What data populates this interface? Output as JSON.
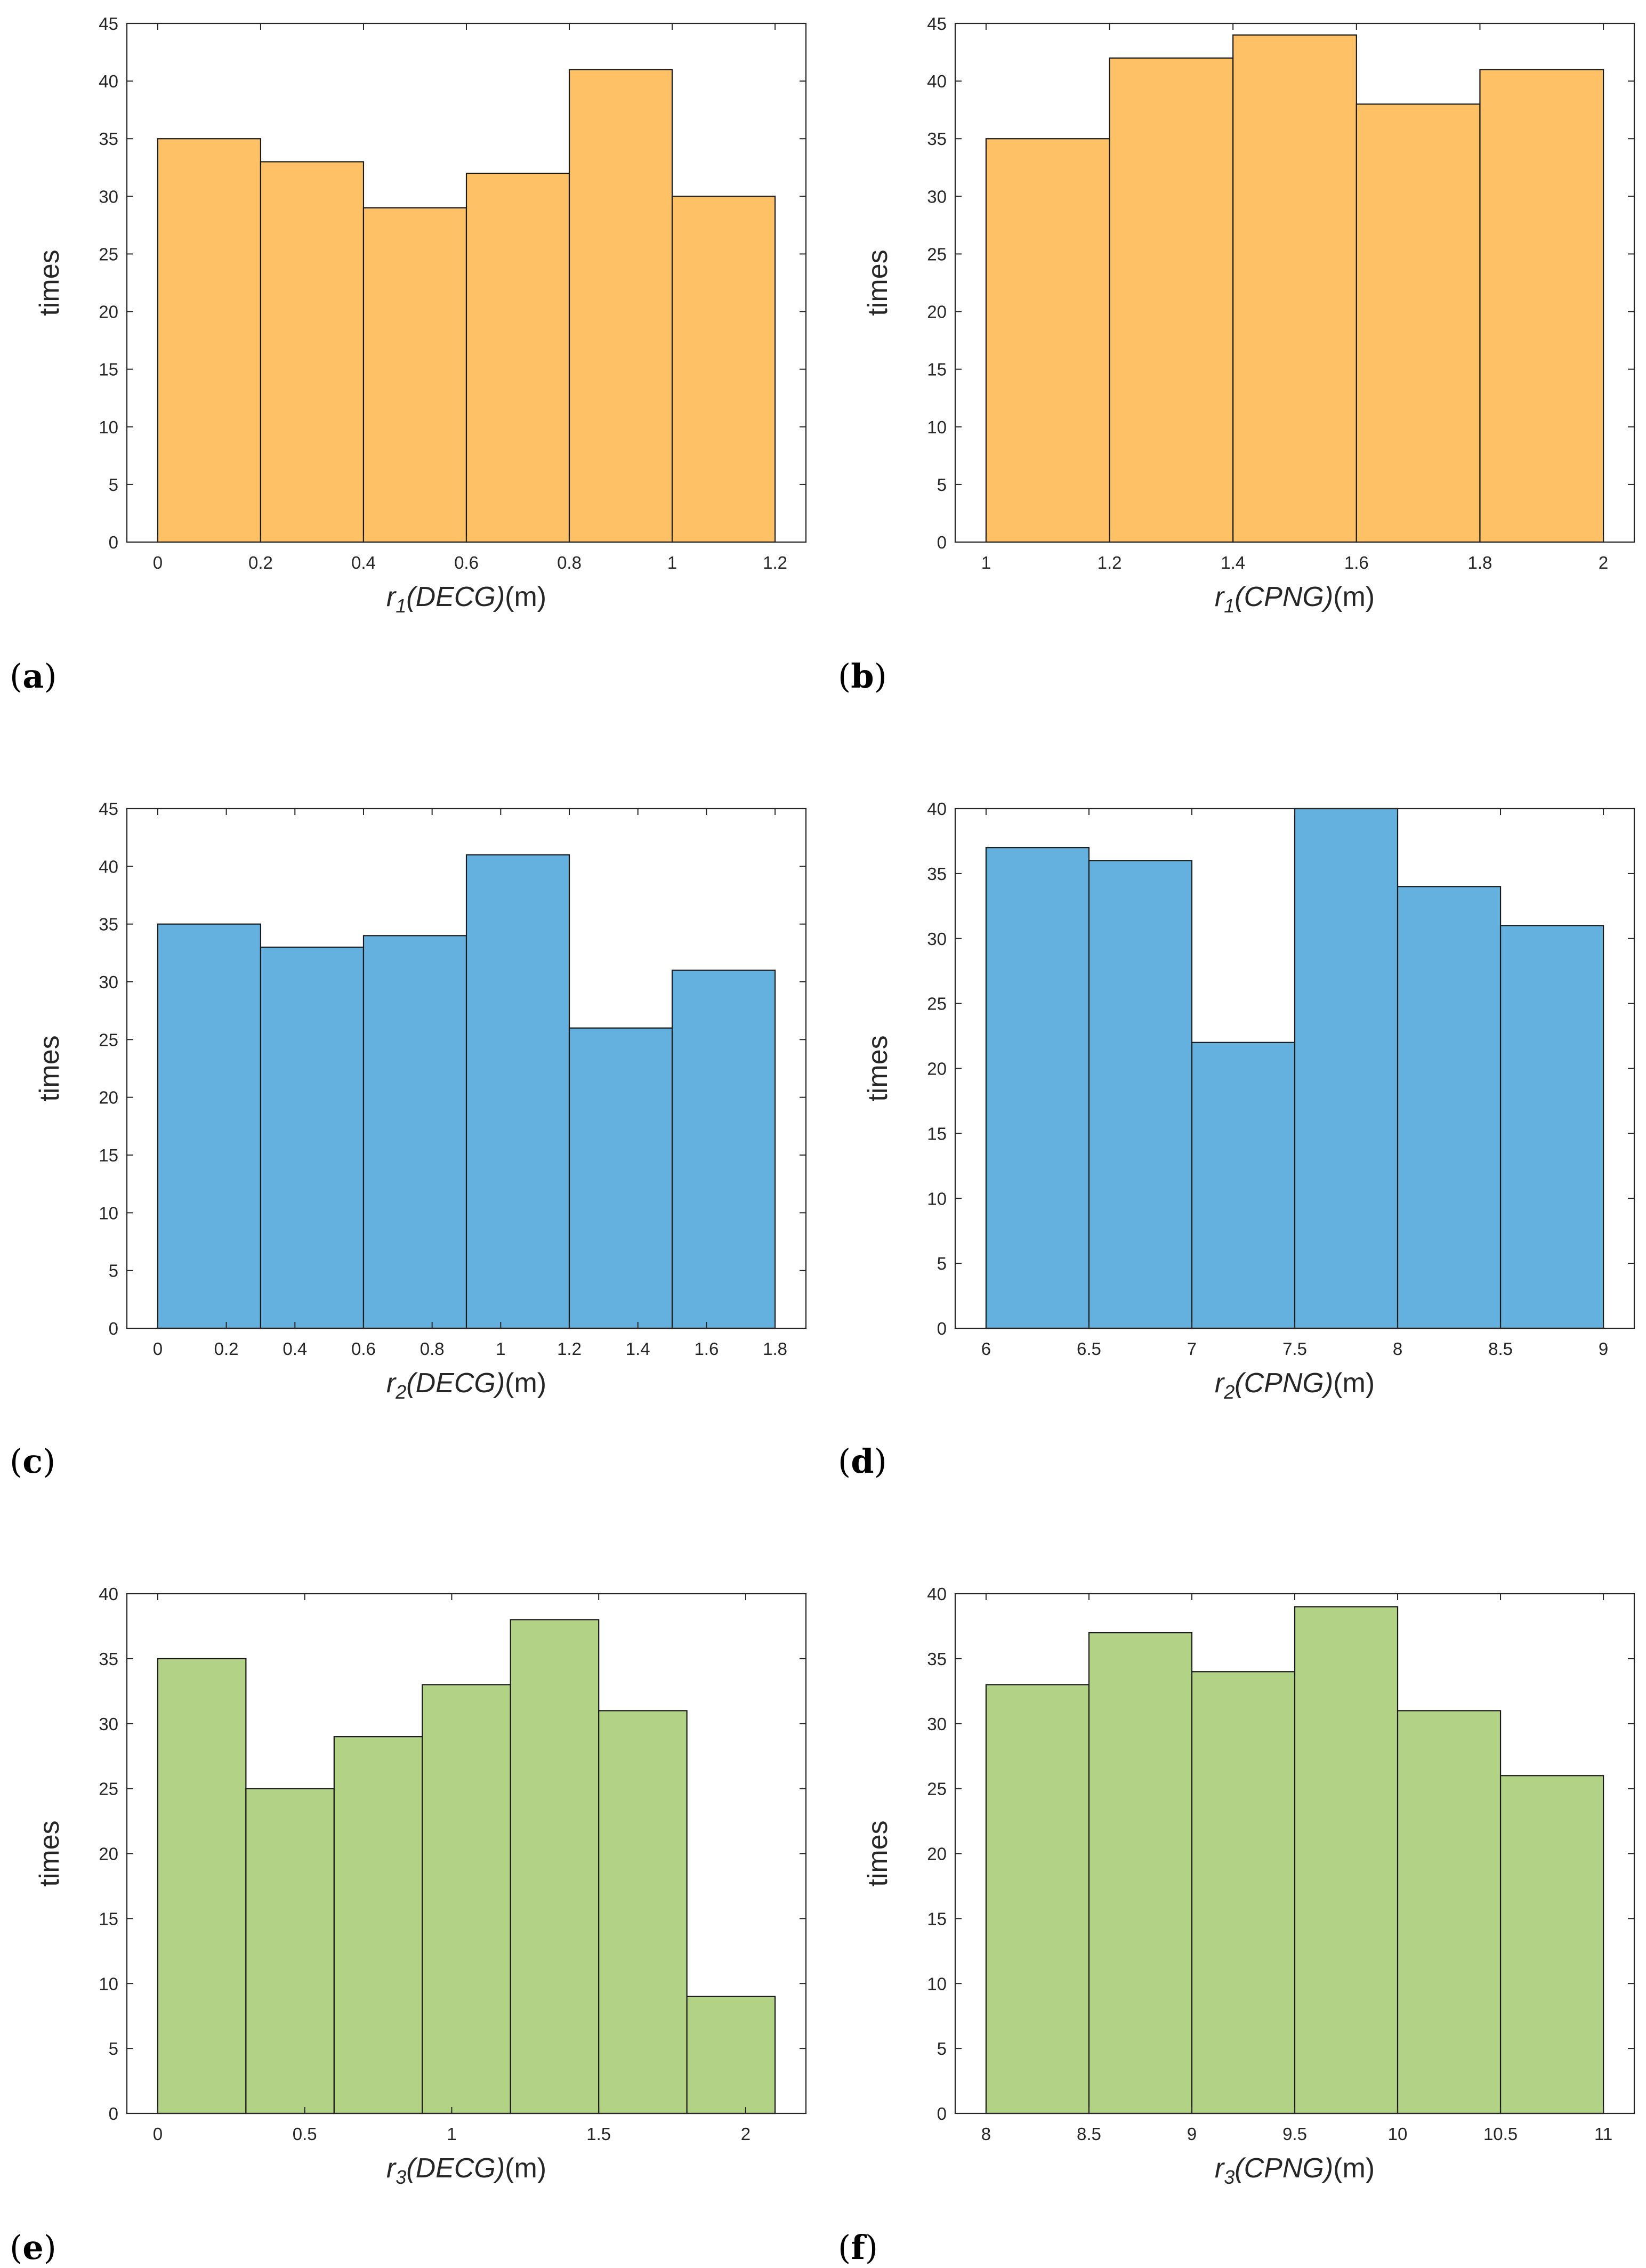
{
  "figure": {
    "panels": [
      {
        "letter": "a",
        "color": "#FFC166"
      },
      {
        "letter": "b",
        "color": "#FFC166"
      },
      {
        "letter": "c",
        "color": "#64B1DF"
      },
      {
        "letter": "d",
        "color": "#64B1DF"
      },
      {
        "letter": "e",
        "color": "#B2D286"
      },
      {
        "letter": "f",
        "color": "#B2D286"
      }
    ]
  },
  "chart_data": [
    {
      "type": "bar",
      "variant": "histogram",
      "panel": "a",
      "bin_edges": [
        0,
        0.2,
        0.4,
        0.6,
        0.8,
        1.0,
        1.2
      ],
      "values": [
        35,
        33,
        29,
        32,
        41,
        30
      ],
      "xlim": [
        -0.06,
        1.26
      ],
      "ylim": [
        0,
        45
      ],
      "xticks": [
        0,
        0.2,
        0.4,
        0.6,
        0.8,
        1,
        1.2
      ],
      "xtick_labels": [
        "0",
        "0.2",
        "0.4",
        "0.6",
        "0.8",
        "1",
        "1.2"
      ],
      "yticks": [
        0,
        5,
        10,
        15,
        20,
        25,
        30,
        35,
        40,
        45
      ],
      "xlabel": {
        "symbol": "r",
        "sub": "1",
        "name": "(DECG)",
        "unit": "(m)"
      },
      "ylabel": "times",
      "color": "#FFC166"
    },
    {
      "type": "bar",
      "variant": "histogram",
      "panel": "b",
      "bin_edges": [
        1.0,
        1.2,
        1.4,
        1.6,
        1.8,
        2.0
      ],
      "values": [
        35,
        42,
        44,
        38,
        41
      ],
      "xlim": [
        0.95,
        2.05
      ],
      "ylim": [
        0,
        45
      ],
      "xticks": [
        1,
        1.2,
        1.4,
        1.6,
        1.8,
        2
      ],
      "xtick_labels": [
        "1",
        "1.2",
        "1.4",
        "1.6",
        "1.8",
        "2"
      ],
      "yticks": [
        0,
        5,
        10,
        15,
        20,
        25,
        30,
        35,
        40,
        45
      ],
      "xlabel": {
        "symbol": "r",
        "sub": "1",
        "name": "(CPNG)",
        "unit": "(m)"
      },
      "ylabel": "times",
      "color": "#FFC166"
    },
    {
      "type": "bar",
      "variant": "histogram",
      "panel": "c",
      "bin_edges": [
        0,
        0.3,
        0.6,
        0.9,
        1.2,
        1.5,
        1.8
      ],
      "values": [
        35,
        33,
        34,
        41,
        26,
        31
      ],
      "xlim": [
        -0.09,
        1.89
      ],
      "ylim": [
        0,
        45
      ],
      "xticks": [
        0,
        0.2,
        0.4,
        0.6,
        0.8,
        1,
        1.2,
        1.4,
        1.6,
        1.8
      ],
      "xtick_labels": [
        "0",
        "0.2",
        "0.4",
        "0.6",
        "0.8",
        "1",
        "1.2",
        "1.4",
        "1.6",
        "1.8"
      ],
      "yticks": [
        0,
        5,
        10,
        15,
        20,
        25,
        30,
        35,
        40,
        45
      ],
      "xlabel": {
        "symbol": "r",
        "sub": "2",
        "name": "(DECG)",
        "unit": "(m)"
      },
      "ylabel": "times",
      "color": "#64B1DF"
    },
    {
      "type": "bar",
      "variant": "histogram",
      "panel": "d",
      "bin_edges": [
        6.0,
        6.5,
        7.0,
        7.5,
        8.0,
        8.5,
        9.0
      ],
      "values": [
        37,
        36,
        22,
        40,
        34,
        31
      ],
      "xlim": [
        5.85,
        9.15
      ],
      "ylim": [
        0,
        40
      ],
      "xticks": [
        6,
        6.5,
        7,
        7.5,
        8,
        8.5,
        9
      ],
      "xtick_labels": [
        "6",
        "6.5",
        "7",
        "7.5",
        "8",
        "8.5",
        "9"
      ],
      "yticks": [
        0,
        5,
        10,
        15,
        20,
        25,
        30,
        35,
        40
      ],
      "xlabel": {
        "symbol": "r",
        "sub": "2",
        "name": "(CPNG)",
        "unit": "(m)"
      },
      "ylabel": "times",
      "color": "#64B1DF"
    },
    {
      "type": "bar",
      "variant": "histogram",
      "panel": "e",
      "bin_edges": [
        0,
        0.3,
        0.6,
        0.9,
        1.2,
        1.5,
        1.8,
        2.1
      ],
      "values": [
        35,
        25,
        29,
        33,
        38,
        31,
        9
      ],
      "xlim": [
        -0.105,
        2.205
      ],
      "ylim": [
        0,
        40
      ],
      "xticks": [
        0,
        0.5,
        1,
        1.5,
        2
      ],
      "xtick_labels": [
        "0",
        "0.5",
        "1",
        "1.5",
        "2"
      ],
      "yticks": [
        0,
        5,
        10,
        15,
        20,
        25,
        30,
        35,
        40
      ],
      "xlabel": {
        "symbol": "r",
        "sub": "3",
        "name": "(DECG)",
        "unit": "(m)"
      },
      "ylabel": "times",
      "color": "#B2D286"
    },
    {
      "type": "bar",
      "variant": "histogram",
      "panel": "f",
      "bin_edges": [
        8.0,
        8.5,
        9.0,
        9.5,
        10.0,
        10.5,
        11.0
      ],
      "values": [
        33,
        37,
        34,
        39,
        31,
        26
      ],
      "xlim": [
        7.85,
        11.15
      ],
      "ylim": [
        0,
        40
      ],
      "xticks": [
        8,
        8.5,
        9,
        9.5,
        10,
        10.5,
        11
      ],
      "xtick_labels": [
        "8",
        "8.5",
        "9",
        "9.5",
        "10",
        "10.5",
        "11"
      ],
      "yticks": [
        0,
        5,
        10,
        15,
        20,
        25,
        30,
        35,
        40
      ],
      "xlabel": {
        "symbol": "r",
        "sub": "3",
        "name": "(CPNG)",
        "unit": "(m)"
      },
      "ylabel": "times",
      "color": "#B2D286"
    }
  ]
}
